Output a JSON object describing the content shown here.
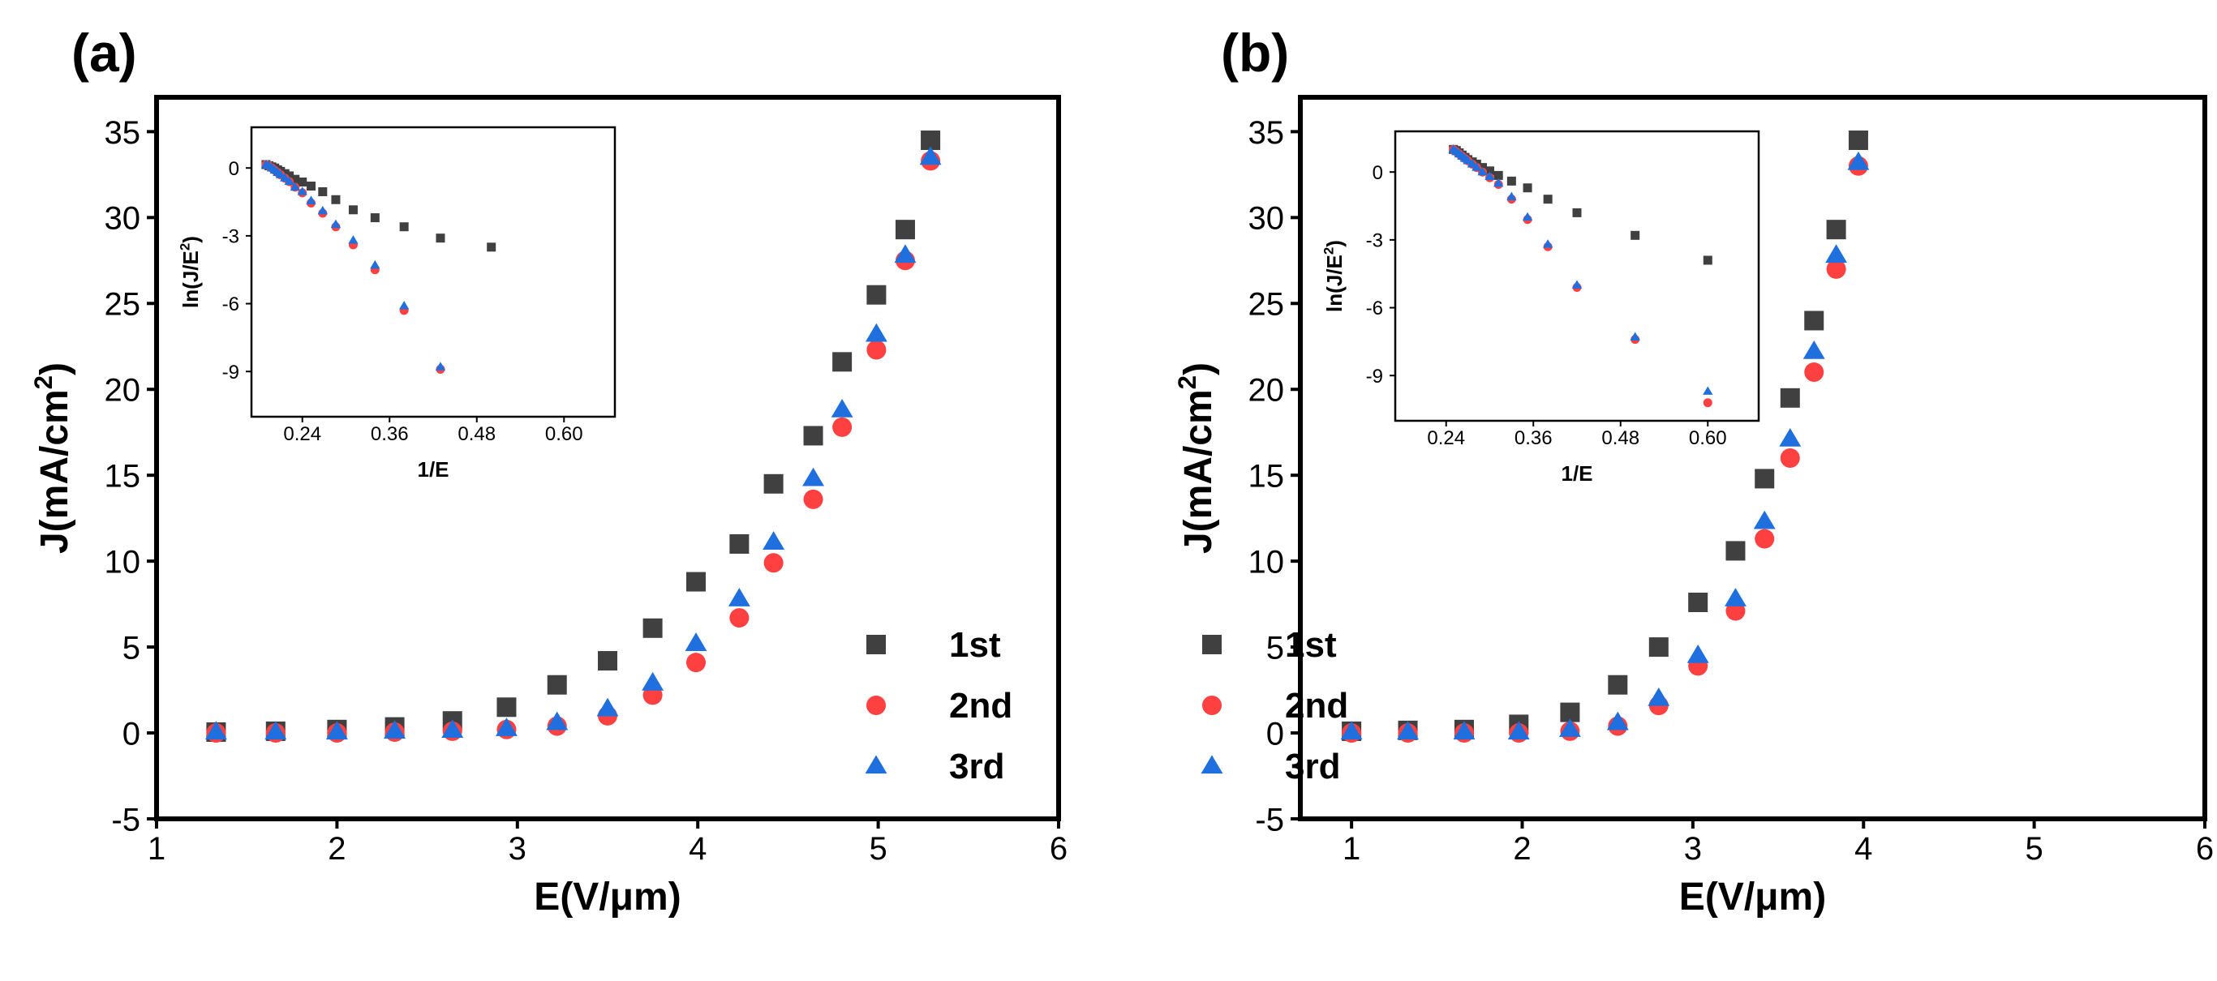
{
  "chart_data": [
    {
      "type": "scatter",
      "panel_label": "(a)",
      "xlabel": "E(V/μm)",
      "ylabel_main": "J(mA/cm",
      "ylabel_sup": "2",
      "ylabel_close": ")",
      "xlim": [
        1,
        6
      ],
      "ylim": [
        -5,
        37
      ],
      "xticks": [
        "1",
        "2",
        "3",
        "4",
        "5",
        "6"
      ],
      "yticks": [
        "-5",
        "0",
        "5",
        "10",
        "15",
        "20",
        "25",
        "30",
        "35"
      ],
      "series": [
        {
          "name": "1st",
          "color": "#404040",
          "marker": "square",
          "x": [
            1.33,
            1.66,
            2.0,
            2.32,
            2.64,
            2.94,
            3.22,
            3.5,
            3.75,
            3.99,
            4.23,
            4.42,
            4.64,
            4.8,
            4.99,
            5.15,
            5.29
          ],
          "y": [
            0.05,
            0.1,
            0.2,
            0.35,
            0.7,
            1.5,
            2.8,
            4.2,
            6.1,
            8.8,
            11.0,
            14.5,
            17.3,
            21.6,
            25.5,
            29.3,
            34.5
          ]
        },
        {
          "name": "2nd",
          "color": "#ff4040",
          "marker": "circle",
          "x": [
            1.33,
            1.66,
            2.0,
            2.32,
            2.64,
            2.94,
            3.22,
            3.5,
            3.75,
            3.99,
            4.23,
            4.42,
            4.64,
            4.8,
            4.99,
            5.15,
            5.29
          ],
          "y": [
            0.0,
            0.0,
            0.0,
            0.05,
            0.1,
            0.2,
            0.4,
            1.0,
            2.2,
            4.1,
            6.7,
            9.9,
            13.6,
            17.8,
            22.3,
            27.5,
            33.3
          ]
        },
        {
          "name": "3rd",
          "color": "#1f6fdf",
          "marker": "triangle",
          "x": [
            1.33,
            1.66,
            2.0,
            2.32,
            2.64,
            2.94,
            3.22,
            3.5,
            3.75,
            3.99,
            4.23,
            4.42,
            4.64,
            4.8,
            4.99,
            5.15,
            5.29
          ],
          "y": [
            0.05,
            0.05,
            0.05,
            0.1,
            0.15,
            0.25,
            0.6,
            1.4,
            2.9,
            5.2,
            7.8,
            11.1,
            14.8,
            18.8,
            23.2,
            27.8,
            33.5
          ]
        }
      ],
      "inset": {
        "xlabel": "1/E",
        "ylabel_main": "ln(J/E",
        "ylabel_sup": "2",
        "ylabel_close": ")",
        "xlim": [
          0.17,
          0.67
        ],
        "ylim": [
          -11,
          1.8
        ],
        "xticks": [
          "0.24",
          "0.36",
          "0.48",
          "0.60"
        ],
        "yticks": [
          "0",
          "-3",
          "-6",
          "-9"
        ],
        "series": [
          {
            "name": "1st",
            "color": "#404040",
            "marker": "square",
            "x": [
              0.19,
              0.194,
              0.198,
              0.202,
              0.206,
              0.21,
              0.216,
              0.222,
              0.23,
              0.24,
              0.252,
              0.268,
              0.286,
              0.31,
              0.34,
              0.38,
              0.43,
              0.5
            ],
            "y": [
              0.15,
              0.1,
              0.05,
              0.0,
              -0.08,
              -0.15,
              -0.25,
              -0.35,
              -0.5,
              -0.62,
              -0.8,
              -1.05,
              -1.4,
              -1.85,
              -2.2,
              -2.6,
              -3.1,
              -3.5
            ]
          },
          {
            "name": "2nd",
            "color": "#ff4040",
            "marker": "circle",
            "x": [
              0.19,
              0.194,
              0.198,
              0.202,
              0.206,
              0.21,
              0.216,
              0.222,
              0.23,
              0.24,
              0.252,
              0.268,
              0.286,
              0.31,
              0.34,
              0.38,
              0.43
            ],
            "y": [
              0.15,
              0.1,
              0.0,
              -0.1,
              -0.2,
              -0.3,
              -0.45,
              -0.6,
              -0.85,
              -1.1,
              -1.55,
              -2.0,
              -2.6,
              -3.4,
              -4.5,
              -6.3,
              -8.9
            ]
          },
          {
            "name": "3rd",
            "color": "#1f6fdf",
            "marker": "triangle",
            "x": [
              0.19,
              0.194,
              0.198,
              0.202,
              0.206,
              0.21,
              0.216,
              0.222,
              0.23,
              0.24,
              0.252,
              0.268,
              0.286,
              0.31,
              0.34,
              0.38,
              0.43
            ],
            "y": [
              0.15,
              0.1,
              0.0,
              -0.1,
              -0.2,
              -0.3,
              -0.45,
              -0.6,
              -0.85,
              -1.05,
              -1.45,
              -1.9,
              -2.5,
              -3.2,
              -4.3,
              -6.1,
              -8.8
            ]
          }
        ]
      }
    },
    {
      "type": "scatter",
      "panel_label": "(b)",
      "xlabel": "E(V/μm)",
      "ylabel_main": "J(mA/cm",
      "ylabel_sup": "2",
      "ylabel_close": ")",
      "xlim": [
        0.7,
        6
      ],
      "ylim": [
        -5,
        37
      ],
      "xticks": [
        "1",
        "2",
        "3",
        "4",
        "5",
        "6"
      ],
      "yticks": [
        "-5",
        "0",
        "5",
        "10",
        "15",
        "20",
        "25",
        "30",
        "35"
      ],
      "series": [
        {
          "name": "1st",
          "color": "#404040",
          "marker": "square",
          "x": [
            1.0,
            1.33,
            1.66,
            1.98,
            2.28,
            2.56,
            2.8,
            3.03,
            3.25,
            3.42,
            3.57,
            3.71,
            3.84,
            3.97
          ],
          "y": [
            0.1,
            0.15,
            0.2,
            0.5,
            1.2,
            2.8,
            5.0,
            7.6,
            10.6,
            14.8,
            19.5,
            24.0,
            29.3,
            34.5
          ]
        },
        {
          "name": "2nd",
          "color": "#ff4040",
          "marker": "circle",
          "x": [
            1.0,
            1.33,
            1.66,
            1.98,
            2.28,
            2.56,
            2.8,
            3.03,
            3.25,
            3.42,
            3.57,
            3.71,
            3.84,
            3.97
          ],
          "y": [
            0.0,
            0.0,
            0.0,
            0.0,
            0.1,
            0.4,
            1.6,
            3.9,
            7.1,
            11.3,
            16.0,
            21.0,
            27.0,
            33.0
          ]
        },
        {
          "name": "3rd",
          "color": "#1f6fdf",
          "marker": "triangle",
          "x": [
            1.0,
            1.33,
            1.66,
            1.98,
            2.28,
            2.56,
            2.8,
            3.03,
            3.25,
            3.42,
            3.57,
            3.71,
            3.84,
            3.97
          ],
          "y": [
            0.05,
            0.05,
            0.05,
            0.05,
            0.2,
            0.6,
            2.0,
            4.5,
            7.8,
            12.3,
            17.1,
            22.2,
            27.8,
            33.2
          ]
        }
      ],
      "inset": {
        "xlabel": "1/E",
        "ylabel_main": "ln(J/E",
        "ylabel_sup": "2",
        "ylabel_close": ")",
        "xlim": [
          0.17,
          0.67
        ],
        "ylim": [
          -11,
          1.8
        ],
        "xticks": [
          "0.24",
          "0.36",
          "0.48",
          "0.60"
        ],
        "yticks": [
          "0",
          "-3",
          "-6",
          "-9"
        ],
        "series": [
          {
            "name": "1st",
            "color": "#404040",
            "marker": "square",
            "x": [
              0.25,
              0.254,
              0.258,
              0.262,
              0.266,
              0.27,
              0.276,
              0.282,
              0.29,
              0.3,
              0.312,
              0.33,
              0.352,
              0.38,
              0.42,
              0.5,
              0.6
            ],
            "y": [
              1.0,
              0.95,
              0.85,
              0.75,
              0.65,
              0.55,
              0.45,
              0.35,
              0.2,
              0.05,
              -0.15,
              -0.4,
              -0.7,
              -1.2,
              -1.8,
              -2.8,
              -3.9
            ]
          },
          {
            "name": "2nd",
            "color": "#ff4040",
            "marker": "circle",
            "x": [
              0.25,
              0.254,
              0.258,
              0.262,
              0.266,
              0.27,
              0.276,
              0.282,
              0.29,
              0.3,
              0.312,
              0.33,
              0.352,
              0.38,
              0.42,
              0.5,
              0.6
            ],
            "y": [
              1.0,
              0.9,
              0.8,
              0.7,
              0.6,
              0.5,
              0.35,
              0.2,
              0.0,
              -0.25,
              -0.55,
              -1.2,
              -2.1,
              -3.3,
              -5.1,
              -7.4,
              -10.2
            ]
          },
          {
            "name": "3rd",
            "color": "#1f6fdf",
            "marker": "triangle",
            "x": [
              0.25,
              0.254,
              0.258,
              0.262,
              0.266,
              0.27,
              0.276,
              0.282,
              0.29,
              0.3,
              0.312,
              0.33,
              0.352,
              0.38,
              0.42,
              0.5,
              0.6
            ],
            "y": [
              1.0,
              0.9,
              0.8,
              0.7,
              0.6,
              0.5,
              0.35,
              0.2,
              0.0,
              -0.2,
              -0.5,
              -1.1,
              -2.0,
              -3.2,
              -5.0,
              -7.3,
              -9.7
            ]
          }
        ]
      }
    }
  ]
}
